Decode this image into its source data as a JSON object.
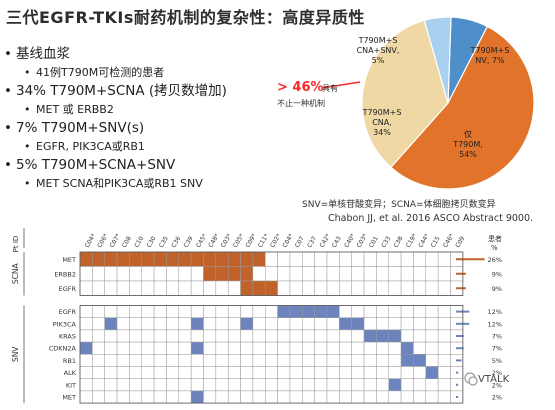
{
  "title": "三代EGFR-TKIs耐药机制的复杂性：高度异质性",
  "bullets": [
    {
      "text": "基线血浆",
      "subs": [
        "41例T790M可检测的患者"
      ]
    },
    {
      "text": "34% T790M+SCNA (拷贝数增加)",
      "subs": [
        "MET 或 ERBB2"
      ]
    },
    {
      "text": "7% T790M+SNV(s)",
      "subs": [
        "EGFR, PIK3CA或RB1"
      ]
    },
    {
      "text": "5% T790M+SCNA+SNV",
      "subs": [
        "MET SCNA和PIK3CA或RB1 SNV"
      ]
    }
  ],
  "pie": {
    "slices": [
      {
        "label_lines": [
          "T790M+S",
          "NV, 7%"
        ],
        "value": 7,
        "color": "#4e8fc9"
      },
      {
        "label_lines": [
          "仅",
          "T790M,",
          "54%"
        ],
        "value": 54,
        "color": "#e2732a"
      },
      {
        "label_lines": [
          "T790M+S",
          "CNA,",
          "34%"
        ],
        "value": 34,
        "color": "#efd8a4"
      },
      {
        "label_lines": [
          "T790M+S",
          "CNA+SNV,",
          "5%"
        ],
        "value": 5,
        "color": "#a9d0ee"
      }
    ],
    "highlight_value": "> 46%",
    "highlight_suffix": "具有",
    "highlight_sub": "不止一种机制"
  },
  "definitions": "SNV=单核苷酸变异；SCNA=体细胞拷贝数变异",
  "reference": "Chabon JJ, et al. 2016 ASCO Abstract 9000.",
  "grid": {
    "pt_id_label": "Pt ID",
    "group_labels": {
      "scna": "SCNA",
      "snv": "SNV"
    },
    "columns": [
      "C04*",
      "C06*",
      "C07*",
      "C08",
      "C10",
      "C30",
      "C35",
      "C36",
      "C39",
      "C45*",
      "C48*",
      "C03*",
      "C05*",
      "C09*",
      "C11*",
      "C02*",
      "C04*",
      "C07",
      "C37",
      "C42*",
      "C43",
      "C40*",
      "C03*",
      "C01",
      "C33",
      "C38",
      "C19*",
      "C44*",
      "C15",
      "C46*",
      "C09"
    ],
    "patients_header": "患者",
    "patients_header_2": "%",
    "scna_rows": [
      {
        "name": "MET",
        "cells": [
          0,
          1,
          2,
          3,
          4,
          5,
          6,
          7,
          8,
          9,
          10,
          11,
          12,
          13,
          14
        ],
        "pct": "26%"
      },
      {
        "name": "ERBB2",
        "cells": [
          10,
          11,
          12,
          13
        ],
        "pct": "9%"
      },
      {
        "name": "EGFR",
        "cells": [
          13,
          14,
          15
        ],
        "pct": "9%"
      }
    ],
    "snv_rows": [
      {
        "name": "EGFR",
        "cells": [
          16,
          17,
          18,
          19,
          20
        ],
        "pct": "12%"
      },
      {
        "name": "PIK3CA",
        "cells": [
          2,
          9,
          13,
          21,
          22
        ],
        "pct": "12%"
      },
      {
        "name": "KRAS",
        "cells": [
          23,
          24,
          25
        ],
        "pct": "7%"
      },
      {
        "name": "CDKN2A",
        "cells": [
          0,
          9,
          26
        ],
        "pct": "7%"
      },
      {
        "name": "RB1",
        "cells": [
          26,
          27
        ],
        "pct": "5%"
      },
      {
        "name": "ALK",
        "cells": [
          28
        ],
        "pct": "2%"
      },
      {
        "name": "KIT",
        "cells": [
          25
        ],
        "pct": "2%"
      },
      {
        "name": "MET",
        "cells": [
          9
        ],
        "pct": "2%"
      }
    ],
    "colors": {
      "scna": "#c0622a",
      "snv": "#6c83bd"
    }
  },
  "watermark": "VTALK"
}
